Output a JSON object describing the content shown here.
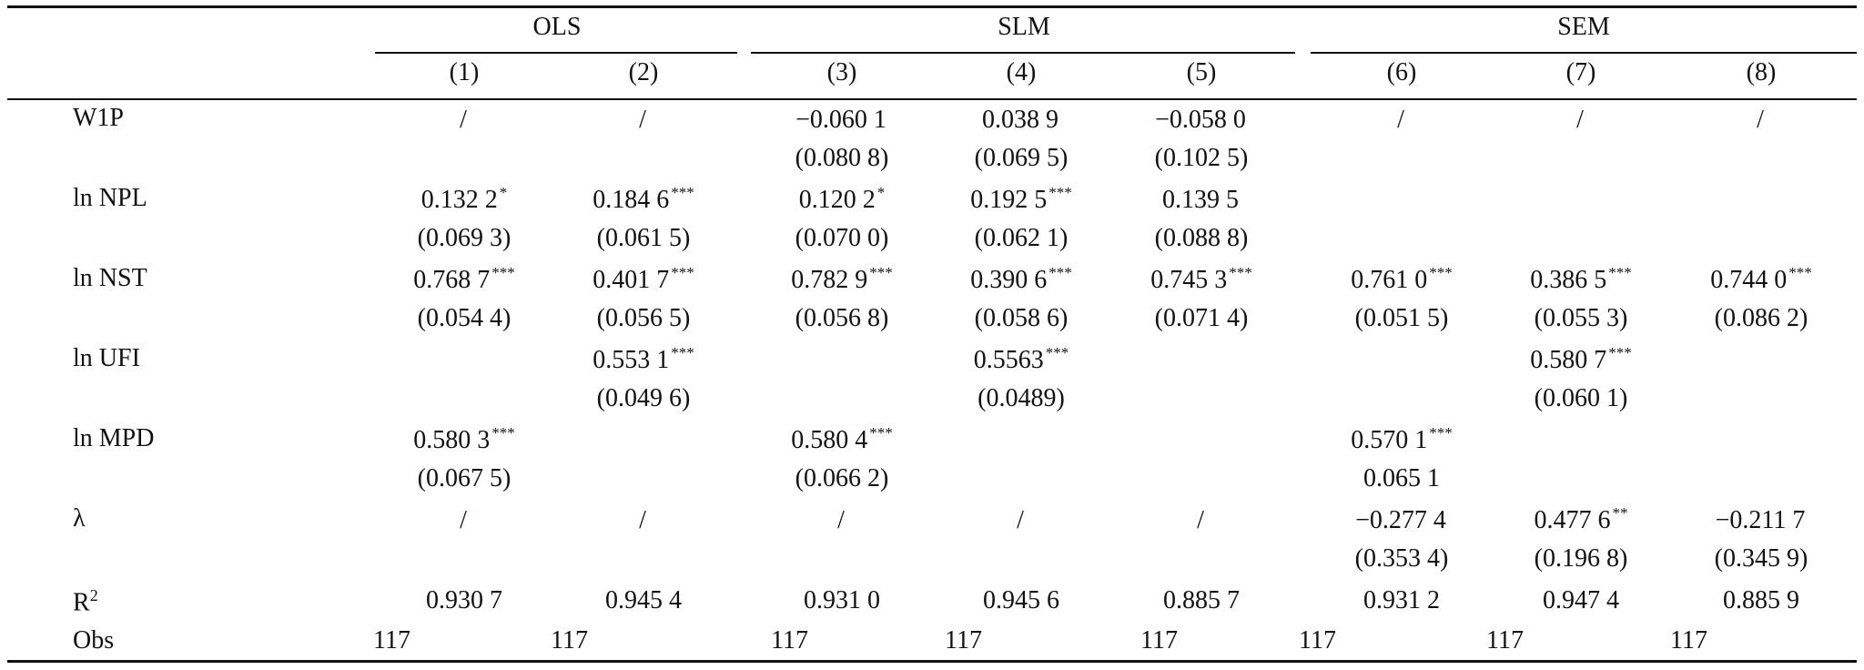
{
  "groups": [
    "OLS",
    "SLM",
    "SEM"
  ],
  "columns": [
    "(1)",
    "(2)",
    "(3)",
    "(4)",
    "(5)",
    "(6)",
    "(7)",
    "(8)"
  ],
  "rows": [
    {
      "label": "W1P",
      "coef": [
        {
          "v": "/",
          "s": ""
        },
        {
          "v": "/",
          "s": ""
        },
        {
          "v": "−0.060 1",
          "s": ""
        },
        {
          "v": "0.038 9",
          "s": ""
        },
        {
          "v": "−0.058 0",
          "s": ""
        },
        {
          "v": "/",
          "s": ""
        },
        {
          "v": "/",
          "s": ""
        },
        {
          "v": "/",
          "s": ""
        }
      ],
      "se": [
        "",
        "",
        "(0.080 8)",
        "(0.069 5)",
        "(0.102 5)",
        "",
        "",
        ""
      ]
    },
    {
      "label": "ln NPL",
      "coef": [
        {
          "v": "0.132 2",
          "s": "*"
        },
        {
          "v": "0.184 6",
          "s": "***"
        },
        {
          "v": "0.120 2",
          "s": "*"
        },
        {
          "v": "0.192 5",
          "s": "***"
        },
        {
          "v": "0.139 5",
          "s": ""
        },
        {
          "v": "",
          "s": ""
        },
        {
          "v": "",
          "s": ""
        },
        {
          "v": "",
          "s": ""
        }
      ],
      "se": [
        "(0.069 3)",
        "(0.061 5)",
        "(0.070 0)",
        "(0.062 1)",
        "(0.088 8)",
        "",
        "",
        ""
      ]
    },
    {
      "label": "ln NST",
      "coef": [
        {
          "v": "0.768 7",
          "s": "***"
        },
        {
          "v": "0.401 7",
          "s": "***"
        },
        {
          "v": "0.782 9",
          "s": "***"
        },
        {
          "v": "0.390 6",
          "s": "***"
        },
        {
          "v": "0.745 3",
          "s": "***"
        },
        {
          "v": "0.761 0",
          "s": "***"
        },
        {
          "v": "0.386 5",
          "s": "***"
        },
        {
          "v": "0.744 0",
          "s": "***"
        }
      ],
      "se": [
        "(0.054 4)",
        "(0.056 5)",
        "(0.056 8)",
        "(0.058 6)",
        "(0.071 4)",
        "(0.051 5)",
        "(0.055 3)",
        "(0.086 2)"
      ]
    },
    {
      "label": "ln UFI",
      "coef": [
        {
          "v": "",
          "s": ""
        },
        {
          "v": "0.553 1",
          "s": "***"
        },
        {
          "v": "",
          "s": ""
        },
        {
          "v": "0.5563",
          "s": "***"
        },
        {
          "v": "",
          "s": ""
        },
        {
          "v": "",
          "s": ""
        },
        {
          "v": "0.580 7",
          "s": "***"
        },
        {
          "v": "",
          "s": ""
        }
      ],
      "se": [
        "",
        "(0.049 6)",
        "",
        "(0.0489)",
        "",
        "",
        "(0.060 1)",
        ""
      ]
    },
    {
      "label": "ln MPD",
      "coef": [
        {
          "v": "0.580 3",
          "s": "***"
        },
        {
          "v": "",
          "s": ""
        },
        {
          "v": "0.580 4",
          "s": "***"
        },
        {
          "v": "",
          "s": ""
        },
        {
          "v": "",
          "s": ""
        },
        {
          "v": "0.570 1",
          "s": "***"
        },
        {
          "v": "",
          "s": ""
        },
        {
          "v": "",
          "s": ""
        }
      ],
      "se": [
        "(0.067 5)",
        "",
        "(0.066 2)",
        "",
        "",
        "0.065 1",
        "",
        ""
      ]
    },
    {
      "label": "λ",
      "coef": [
        {
          "v": "/",
          "s": ""
        },
        {
          "v": "/",
          "s": ""
        },
        {
          "v": "/",
          "s": ""
        },
        {
          "v": "/",
          "s": ""
        },
        {
          "v": "/",
          "s": ""
        },
        {
          "v": "−0.277 4",
          "s": ""
        },
        {
          "v": "0.477 6",
          "s": "**"
        },
        {
          "v": "−0.211 7",
          "s": ""
        }
      ],
      "se": [
        "",
        "",
        "",
        "",
        "",
        "(0.353 4)",
        "(0.196 8)",
        "(0.345 9)"
      ]
    }
  ],
  "r2": {
    "label_base": "R",
    "label_sup": "2",
    "values": [
      "0.930 7",
      "0.945 4",
      "0.931 0",
      "0.945 6",
      "0.885 7",
      "0.931 2",
      "0.947 4",
      "0.885 9"
    ]
  },
  "obs": {
    "label": "Obs",
    "values": [
      "117",
      "117",
      "117",
      "117",
      "117",
      "117",
      "117",
      "117"
    ]
  }
}
